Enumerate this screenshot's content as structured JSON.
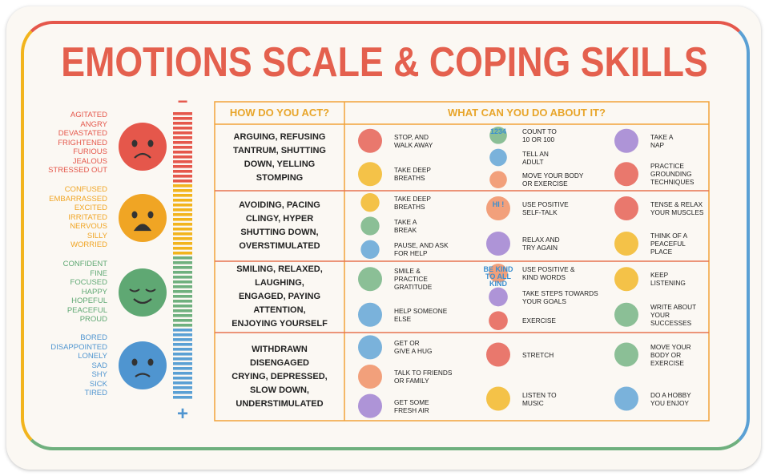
{
  "title": "EMOTIONS SCALE & COPING SKILLS",
  "emotions": [
    {
      "color": "#e5574b",
      "words": [
        "AGITATED",
        "ANGRY",
        "DEVASTATED",
        "FRIGHTENED",
        "FURIOUS",
        "JEALOUS",
        "STRESSED OUT"
      ]
    },
    {
      "color": "#f0a524",
      "words": [
        "CONFUSED",
        "EMBARRASSED",
        "EXCITED",
        "IRRITATED",
        "NERVOUS",
        "SILLY",
        "WORRIED"
      ]
    },
    {
      "color": "#5fa873",
      "words": [
        "CONFIDENT",
        "FINE",
        "FOCUSED",
        "HAPPY",
        "HOPEFUL",
        "PEACEFUL",
        "PROUD"
      ]
    },
    {
      "color": "#4f95d0",
      "words": [
        "BORED",
        "DISAPPOINTED",
        "LONELY",
        "SAD",
        "SHY",
        "SICK",
        "TIRED"
      ]
    }
  ],
  "scale": {
    "top": "−",
    "bottom": "+"
  },
  "table": {
    "headers": [
      "HOW DO YOU ACT?",
      "WHAT CAN YOU DO ABOUT IT?"
    ],
    "rows": [
      {
        "act": [
          "ARGUING, REFUSING",
          "TANTRUM, SHUTTING",
          "DOWN, YELLING",
          "STOMPING"
        ],
        "coping": [
          [
            {
              "text": [
                "STOP, AND",
                "WALK AWAY"
              ]
            },
            {
              "text": [
                "TAKE DEEP",
                "BREATHS"
              ]
            }
          ],
          [
            {
              "text": [
                "COUNT TO",
                "10 OR 100"
              ],
              "icon_text": "1234"
            },
            {
              "text": [
                "TELL AN",
                "ADULT"
              ]
            },
            {
              "text": [
                "MOVE YOUR BODY",
                "OR EXERCISE"
              ]
            }
          ],
          [
            {
              "text": [
                "TAKE A",
                "NAP"
              ]
            },
            {
              "text": [
                "PRACTICE",
                "GROUNDING",
                "TECHNIQUES"
              ]
            }
          ]
        ]
      },
      {
        "act": [
          "AVOIDING, PACING",
          "CLINGY, HYPER",
          "SHUTTING DOWN,",
          "OVERSTIMULATED"
        ],
        "coping": [
          [
            {
              "text": [
                "TAKE DEEP",
                "BREATHS"
              ]
            },
            {
              "text": [
                "TAKE A",
                "BREAK"
              ]
            },
            {
              "text": [
                "PAUSE, AND ASK",
                "FOR HELP"
              ]
            }
          ],
          [
            {
              "text": [
                "USE POSITIVE",
                "SELF-TALK"
              ],
              "icon_text": "HI !"
            },
            {
              "text": [
                "RELAX AND",
                "TRY AGAIN"
              ]
            }
          ],
          [
            {
              "text": [
                "TENSE & RELAX",
                "YOUR MUSCLES"
              ]
            },
            {
              "text": [
                "THINK OF A",
                "PEACEFUL",
                "PLACE"
              ]
            }
          ]
        ]
      },
      {
        "act": [
          "SMILING, RELAXED,",
          "LAUGHING,",
          "ENGAGED, PAYING",
          "ATTENTION,",
          "ENJOYING YOURSELF"
        ],
        "coping": [
          [
            {
              "text": [
                "SMILE &",
                "PRACTICE",
                "GRATITUDE"
              ]
            },
            {
              "text": [
                "HELP SOMEONE",
                "ELSE"
              ]
            }
          ],
          [
            {
              "text": [
                "USE POSITIVE &",
                "KIND WORDS"
              ],
              "icon_text": "BE KIND TO ALL KIND"
            },
            {
              "text": [
                "TAKE STEPS TOWARDS",
                "YOUR GOALS"
              ]
            },
            {
              "text": [
                "EXERCISE"
              ]
            }
          ],
          [
            {
              "text": [
                "KEEP",
                "LISTENING"
              ]
            },
            {
              "text": [
                "WRITE ABOUT",
                "YOUR",
                "SUCCESSES"
              ]
            }
          ]
        ]
      },
      {
        "act": [
          "WITHDRAWN",
          "DISENGAGED",
          "CRYING, DEPRESSED,",
          "SLOW DOWN,",
          "UNDERSTIMULATED"
        ],
        "coping": [
          [
            {
              "text": [
                "GET OR",
                "GIVE A HUG"
              ]
            },
            {
              "text": [
                "TALK TO FRIENDS",
                "OR FAMILY"
              ]
            },
            {
              "text": [
                "GET SOME",
                "FRESH AIR"
              ]
            }
          ],
          [
            {
              "text": [
                "STRETCH"
              ]
            },
            {
              "text": [
                "LISTEN TO",
                "MUSIC"
              ]
            }
          ],
          [
            {
              "text": [
                "MOVE YOUR",
                "BODY OR",
                "EXERCISE"
              ]
            },
            {
              "text": [
                "DO A HOBBY",
                "YOU ENJOY"
              ]
            }
          ]
        ]
      }
    ]
  }
}
